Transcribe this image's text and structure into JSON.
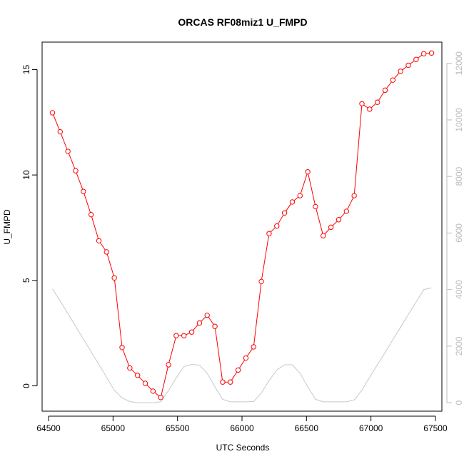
{
  "chart_data": {
    "type": "line",
    "title": "ORCAS RF08miz1 U_FMPD",
    "xlabel": "UTC Seconds",
    "ylabel": "U_FMPD",
    "x_ticks": [
      64500,
      65000,
      65500,
      66000,
      66500,
      67000,
      67500
    ],
    "y_ticks": [
      0,
      5,
      10,
      15
    ],
    "y2_ticks": [
      0,
      2000,
      4000,
      6000,
      8000,
      10000,
      12000
    ],
    "xlim": [
      64450,
      67550
    ],
    "ylim": [
      -1.2,
      16.3
    ],
    "y2lim": [
      -300,
      12750
    ],
    "grid": false,
    "series": [
      {
        "color": "#ff0000",
        "markers": "open-circle",
        "axis": "left",
        "x": [
          64530,
          64590,
          64650,
          64710,
          64770,
          64830,
          64890,
          64950,
          65010,
          65070,
          65130,
          65190,
          65250,
          65310,
          65370,
          65430,
          65490,
          65550,
          65610,
          65670,
          65730,
          65790,
          65850,
          65910,
          65970,
          66030,
          66090,
          66150,
          66210,
          66270,
          66330,
          66390,
          66450,
          66510,
          66570,
          66630,
          66690,
          66750,
          66810,
          66870,
          66930,
          66990,
          67050,
          67110,
          67170,
          67230,
          67290,
          67350,
          67410,
          67470
        ],
        "values": [
          12.95,
          12.05,
          11.12,
          10.2,
          9.22,
          8.12,
          6.88,
          6.35,
          5.12,
          1.82,
          0.85,
          0.5,
          0.12,
          -0.25,
          -0.55,
          1.0,
          2.38,
          2.38,
          2.55,
          2.98,
          3.35,
          2.82,
          0.18,
          0.18,
          0.75,
          1.32,
          1.85,
          4.95,
          7.22,
          7.58,
          8.2,
          8.72,
          9.02,
          10.15,
          8.5,
          7.12,
          7.52,
          7.88,
          8.28,
          9.02,
          13.38,
          13.12,
          13.45,
          14.02,
          14.5,
          14.92,
          15.2,
          15.48,
          15.75,
          15.78
        ]
      },
      {
        "color": "#c8c8c8",
        "markers": "none",
        "axis": "right",
        "x": [
          64530,
          64590,
          64650,
          64710,
          64770,
          64830,
          64890,
          64950,
          65010,
          65070,
          65130,
          65190,
          65250,
          65310,
          65370,
          65430,
          65490,
          65550,
          65610,
          65670,
          65730,
          65790,
          65850,
          65910,
          65970,
          66030,
          66090,
          66150,
          66210,
          66270,
          66330,
          66390,
          66450,
          66510,
          66570,
          66630,
          66690,
          66750,
          66810,
          66870,
          66930,
          66990,
          67050,
          67110,
          67170,
          67230,
          67290,
          67350,
          67410,
          67470
        ],
        "values": [
          4020,
          3600,
          3150,
          2700,
          2250,
          1800,
          1350,
          900,
          440,
          170,
          40,
          0,
          0,
          0,
          30,
          430,
          880,
          1280,
          1350,
          1330,
          1040,
          560,
          120,
          30,
          30,
          30,
          40,
          340,
          780,
          1160,
          1340,
          1340,
          1040,
          560,
          120,
          30,
          30,
          30,
          30,
          100,
          440,
          900,
          1340,
          1780,
          2230,
          2670,
          3120,
          3560,
          4000,
          4060
        ]
      }
    ]
  }
}
